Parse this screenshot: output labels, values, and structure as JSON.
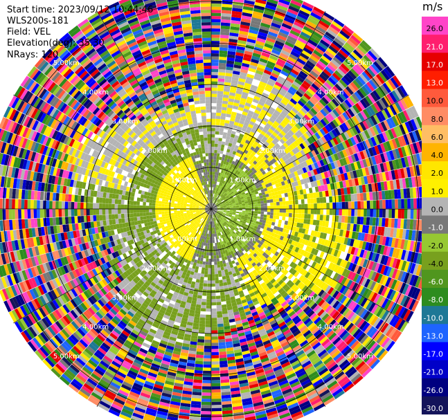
{
  "header": {
    "start_time": "Start time: 2023/09/12 10:44:46",
    "instrument": "WLS200s-181",
    "field": "Field: VEL",
    "elevation": "Elevation(deg): 35.30",
    "nrays": "NRays: 120"
  },
  "colorbar": {
    "unit": "m/s",
    "labels": [
      "26.0",
      "21.0",
      "17.0",
      "13.0",
      "10.0",
      "8.0",
      "6.0",
      "4.0",
      "2.0",
      "1.0",
      "0.0",
      "-1.0",
      "-2.0",
      "-4.0",
      "-6.0",
      "-8.0",
      "-10.0",
      "-13.0",
      "-17.0",
      "-21.0",
      "-26.0",
      "-30.0"
    ],
    "colors": [
      "#ff44c8",
      "#ff1e6e",
      "#e60000",
      "#ff1e00",
      "#ff5a3c",
      "#ff8c64",
      "#ffbe64",
      "#ffb400",
      "#ffe600",
      "#fff000",
      "#b4b4b4",
      "#787878",
      "#96c832",
      "#78a01e",
      "#50961e",
      "#2d8c1e",
      "#1e7896",
      "#1e64ff",
      "#0000ff",
      "#0000c8",
      "#000080",
      "#14145a"
    ]
  },
  "chart_data": {
    "type": "heatmap",
    "plot_kind": "polar PPI (radial velocity)",
    "field": "VEL",
    "nrays": 120,
    "range_rings_km": [
      1.0,
      2.0,
      3.0,
      4.0,
      5.0
    ],
    "range_labels": [
      "1.00km",
      "2.00km",
      "3.00km",
      "4.00km",
      "5.00km"
    ],
    "max_range_km": 5.5,
    "value_range": [
      -30.0,
      26.0
    ],
    "unit": "m/s",
    "structure": "valid returns within ~3 km; inner zone yellow (+1 to +2 m/s) toward west and east, green (-2 to -4 m/s) and gray (~0) elsewhere; beyond ~3.3 km random noise across full colormap"
  }
}
